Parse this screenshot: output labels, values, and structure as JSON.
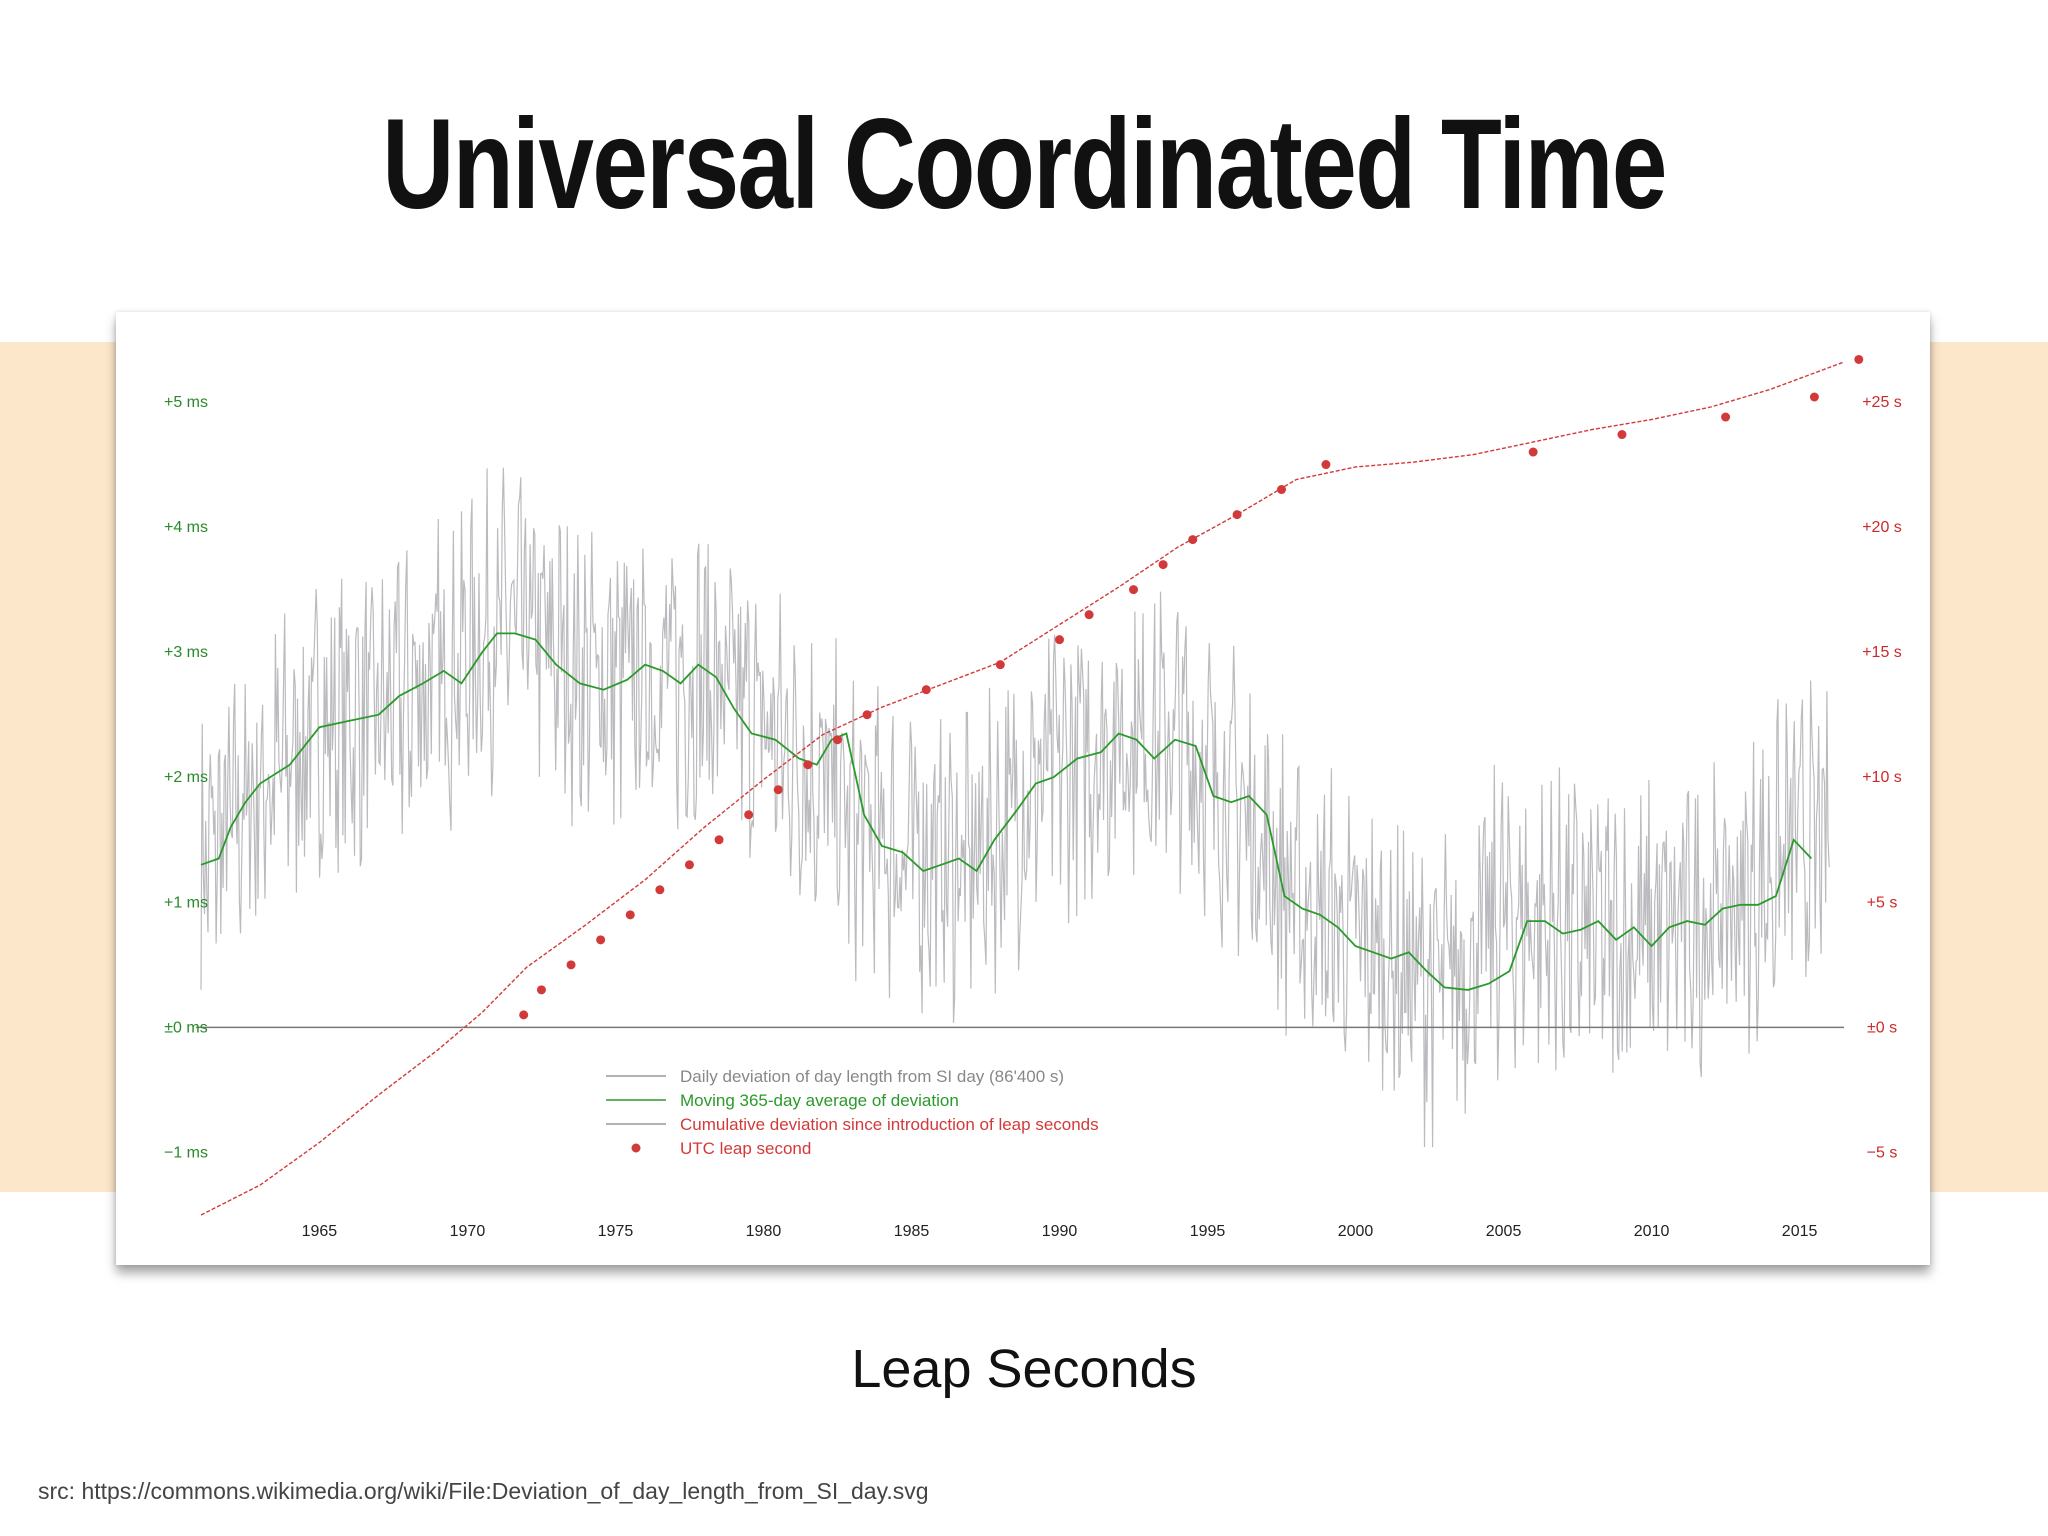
{
  "slide": {
    "title": "Universal Coordinated Time",
    "caption": "Leap Seconds",
    "source": "src: https://commons.wikimedia.org/wiki/File:Deviation_of_day_length_from_SI_day.svg"
  },
  "colors": {
    "band": "#fde7cb",
    "daily": "#b4b4b8",
    "average": "#2a9a2a",
    "cumulative": "#d23a3a",
    "left_axis": "#2a8a2a",
    "right_axis": "#cc2a2a",
    "zero_line": "#777777"
  },
  "chart_data": {
    "type": "line",
    "x_range": [
      1961,
      2016.5
    ],
    "x_ticks": [
      1965,
      1970,
      1975,
      1980,
      1985,
      1990,
      1995,
      2000,
      2005,
      2010,
      2015
    ],
    "left_axis": {
      "range": [
        -1.5,
        5.0
      ],
      "ticks": [
        {
          "value": 5,
          "label": "+5 ms"
        },
        {
          "value": 4,
          "label": "+4 ms"
        },
        {
          "value": 3,
          "label": "+3 ms"
        },
        {
          "value": 2,
          "label": "+2 ms"
        },
        {
          "value": 1,
          "label": "+1 ms"
        },
        {
          "value": 0,
          "label": "±0 ms"
        },
        {
          "value": -1,
          "label": "−1 ms"
        }
      ]
    },
    "right_axis": {
      "range": [
        -7.5,
        25.0
      ],
      "ticks": [
        {
          "value": 25,
          "label": "+25 s"
        },
        {
          "value": 20,
          "label": "+20 s"
        },
        {
          "value": 15,
          "label": "+15 s"
        },
        {
          "value": 10,
          "label": "+10 s"
        },
        {
          "value": 5,
          "label": "+5 s"
        },
        {
          "value": 0,
          "label": "±0 s"
        },
        {
          "value": -5,
          "label": "−5 s"
        }
      ]
    },
    "series": [
      {
        "name": "Daily deviation of day length from SI day (86'400 s)",
        "axis": "left",
        "note_type": "noisy band",
        "x": [
          1961,
          1963,
          1965,
          1967,
          1969,
          1971,
          1972,
          1974,
          1976,
          1978,
          1980,
          1981.5,
          1983,
          1985,
          1987,
          1989,
          1991,
          1992.5,
          1994,
          1996,
          1998,
          2000,
          2002,
          2003,
          2005,
          2007,
          2009,
          2011,
          2013,
          2015,
          2016
        ],
        "y": [
          1.3,
          1.9,
          2.4,
          2.5,
          2.8,
          3.2,
          3.2,
          2.8,
          2.8,
          2.8,
          2.4,
          2.1,
          1.6,
          1.4,
          1.3,
          1.9,
          2.2,
          2.4,
          2.3,
          1.8,
          1.0,
          0.7,
          0.4,
          0.3,
          0.9,
          0.8,
          0.7,
          0.8,
          1.0,
          1.5,
          1.4
        ]
      },
      {
        "name": "Moving 365-day average of deviation",
        "axis": "left",
        "x": [
          1961,
          1961.6,
          1962,
          1962.5,
          1963,
          1964,
          1965,
          1966,
          1967,
          1967.7,
          1968.5,
          1969.2,
          1969.8,
          1970.5,
          1971,
          1971.6,
          1972.3,
          1973,
          1973.8,
          1974.6,
          1975.4,
          1976,
          1976.6,
          1977.2,
          1977.8,
          1978.4,
          1979,
          1979.6,
          1980.4,
          1981.2,
          1981.8,
          1982.3,
          1982.8,
          1983.4,
          1984,
          1984.7,
          1985.4,
          1986,
          1986.6,
          1987.2,
          1987.8,
          1988.6,
          1989.2,
          1989.8,
          1990.6,
          1991.4,
          1992,
          1992.6,
          1993.2,
          1993.9,
          1994.6,
          1995.2,
          1995.8,
          1996.4,
          1997,
          1997.6,
          1998.2,
          1998.8,
          1999.4,
          2000,
          2000.6,
          2001.2,
          2001.8,
          2002.4,
          2003,
          2003.8,
          2004.5,
          2005.2,
          2005.8,
          2006.4,
          2007,
          2007.6,
          2008.2,
          2008.8,
          2009.4,
          2010,
          2010.6,
          2011.2,
          2011.8,
          2012.4,
          2013,
          2013.6,
          2014.2,
          2014.8,
          2015.4
        ],
        "y": [
          1.3,
          1.35,
          1.6,
          1.8,
          1.95,
          2.1,
          2.4,
          2.45,
          2.5,
          2.65,
          2.75,
          2.85,
          2.75,
          3.0,
          3.15,
          3.15,
          3.1,
          2.9,
          2.75,
          2.7,
          2.78,
          2.9,
          2.85,
          2.75,
          2.9,
          2.8,
          2.55,
          2.35,
          2.3,
          2.15,
          2.1,
          2.3,
          2.35,
          1.7,
          1.45,
          1.4,
          1.25,
          1.3,
          1.35,
          1.25,
          1.5,
          1.75,
          1.95,
          2.0,
          2.15,
          2.2,
          2.35,
          2.3,
          2.15,
          2.3,
          2.25,
          1.85,
          1.8,
          1.85,
          1.7,
          1.05,
          0.95,
          0.9,
          0.8,
          0.65,
          0.6,
          0.55,
          0.6,
          0.45,
          0.32,
          0.3,
          0.35,
          0.45,
          0.85,
          0.85,
          0.75,
          0.78,
          0.85,
          0.7,
          0.8,
          0.65,
          0.8,
          0.85,
          0.82,
          0.95,
          0.98,
          0.98,
          1.05,
          1.5,
          1.35
        ]
      },
      {
        "name": "Cumulative deviation since introduction of leap seconds",
        "axis": "right",
        "x": [
          1961,
          1963,
          1965,
          1967,
          1969,
          1970.5,
          1972,
          1974,
          1976,
          1978,
          1980,
          1982,
          1984,
          1986,
          1988,
          1990,
          1992,
          1994,
          1996,
          1998,
          2000,
          2002,
          2004,
          2006,
          2008,
          2010,
          2012,
          2014,
          2016.5
        ],
        "y": [
          -7.5,
          -6.3,
          -4.6,
          -2.7,
          -0.9,
          0.6,
          2.4,
          4.1,
          5.9,
          8.0,
          9.9,
          11.7,
          12.8,
          13.7,
          14.6,
          16.1,
          17.6,
          19.2,
          20.5,
          21.9,
          22.4,
          22.6,
          22.9,
          23.4,
          23.9,
          24.3,
          24.8,
          25.5,
          26.6
        ]
      },
      {
        "name": "UTC leap second",
        "axis": "right",
        "type": "scatter",
        "x": [
          1971.9,
          1972.5,
          1973.5,
          1974.5,
          1975.5,
          1976.5,
          1977.5,
          1978.5,
          1979.5,
          1980.5,
          1981.5,
          1982.5,
          1983.5,
          1985.5,
          1988.0,
          1990.0,
          1991.0,
          1992.5,
          1993.5,
          1994.5,
          1996.0,
          1997.5,
          1999.0,
          2006.0,
          2009.0,
          2012.5,
          2015.5,
          2017.0
        ],
        "y": [
          0.5,
          1.5,
          2.5,
          3.5,
          4.5,
          5.5,
          6.5,
          7.5,
          8.5,
          9.5,
          10.5,
          11.5,
          12.5,
          13.5,
          14.5,
          15.5,
          16.5,
          17.5,
          18.5,
          19.5,
          20.5,
          21.5,
          22.5,
          23.0,
          23.7,
          24.4,
          25.2,
          26.7
        ]
      }
    ],
    "legend": {
      "position": "bottom-center",
      "entries": [
        {
          "label": "Daily deviation of day length from SI day (86'400 s)",
          "kind": "daily"
        },
        {
          "label": "Moving 365-day average of deviation",
          "kind": "average"
        },
        {
          "label": "Cumulative deviation since introduction of leap seconds",
          "kind": "cumulative"
        },
        {
          "label": "UTC leap second",
          "kind": "leap"
        }
      ]
    }
  }
}
